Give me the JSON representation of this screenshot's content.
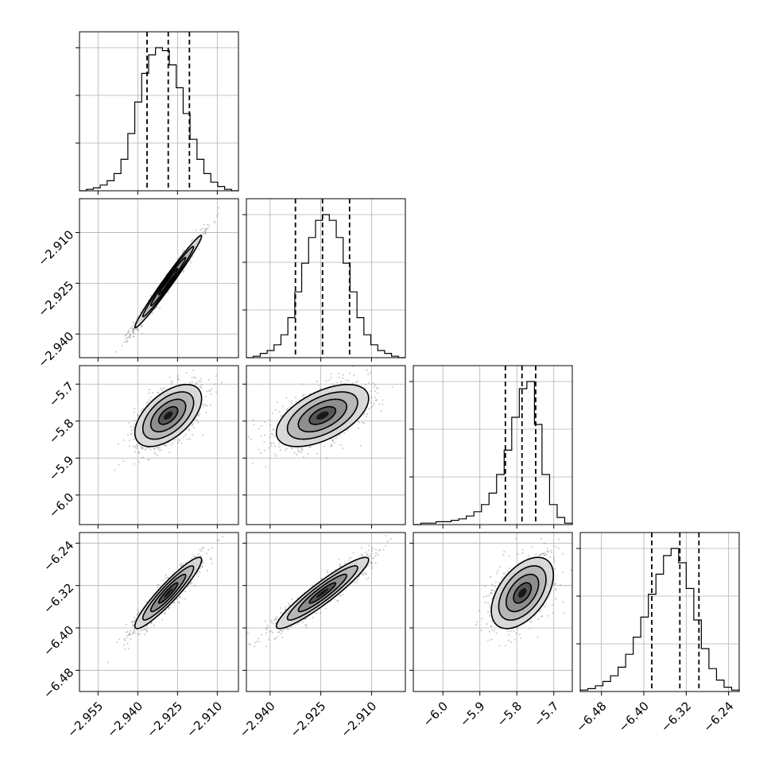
{
  "chart_data": {
    "type": "corner",
    "grid": true,
    "parameters": [
      {
        "index": 0,
        "range": [
          -2.962,
          -2.902
        ],
        "ticks": [
          "−2.955",
          "−2.940",
          "−2.925",
          "−2.910"
        ],
        "tick_values": [
          -2.955,
          -2.94,
          -2.925,
          -2.91
        ],
        "quantiles": [
          -2.9365,
          -2.9285,
          -2.9205
        ],
        "mean": -2.9285,
        "sd": 0.006
      },
      {
        "index": 1,
        "range": [
          -2.947,
          -2.9
        ],
        "ticks": [
          "−2.940",
          "−2.925",
          "−2.910"
        ],
        "tick_values": [
          -2.94,
          -2.925,
          -2.91
        ],
        "quantiles": [
          -2.9325,
          -2.9245,
          -2.9165
        ],
        "mean": -2.9245,
        "sd": 0.0065
      },
      {
        "index": 2,
        "range": [
          -6.08,
          -5.65
        ],
        "ticks": [
          "−6.0",
          "−5.9",
          "−5.8",
          "−5.7"
        ],
        "tick_values": [
          -6.0,
          -5.9,
          -5.8,
          -5.7
        ],
        "quantiles": [
          -5.831,
          -5.786,
          -5.749
        ],
        "mean": -5.785,
        "sd": 0.04
      },
      {
        "index": 3,
        "range": [
          -6.52,
          -6.22
        ],
        "ticks": [
          "−6.48",
          "−6.40",
          "−6.32",
          "−6.24"
        ],
        "tick_values": [
          -6.48,
          -6.4,
          -6.32,
          -6.24
        ],
        "quantiles": [
          -6.385,
          -6.332,
          -6.296
        ],
        "mean": -6.334,
        "sd": 0.032
      }
    ],
    "diagonal_histograms": [
      {
        "param": 0,
        "bin_counts": [
          0,
          1,
          2,
          4,
          7,
          12,
          22,
          40,
          62,
          82,
          95,
          100,
          98,
          88,
          72,
          54,
          36,
          22,
          12,
          6,
          3,
          1,
          0
        ]
      },
      {
        "param": 1,
        "bin_counts": [
          0,
          1,
          3,
          5,
          9,
          16,
          28,
          46,
          66,
          84,
          96,
          100,
          96,
          84,
          66,
          46,
          28,
          16,
          9,
          5,
          3,
          1,
          0
        ]
      },
      {
        "param": 2,
        "bin_counts": [
          0,
          1,
          1,
          2,
          2,
          3,
          4,
          6,
          9,
          14,
          22,
          35,
          52,
          75,
          95,
          100,
          70,
          35,
          14,
          5,
          1
        ]
      },
      {
        "param": 3,
        "bin_counts": [
          1,
          2,
          4,
          7,
          11,
          17,
          26,
          38,
          52,
          68,
          82,
          95,
          100,
          90,
          72,
          50,
          30,
          16,
          8,
          3,
          1
        ]
      }
    ],
    "pair_correlations": [
      {
        "x": 0,
        "y": 1,
        "rho": 0.985
      },
      {
        "x": 0,
        "y": 2,
        "rho": 0.55
      },
      {
        "x": 1,
        "y": 2,
        "rho": 0.55
      },
      {
        "x": 0,
        "y": 3,
        "rho": 0.93
      },
      {
        "x": 1,
        "y": 3,
        "rho": 0.93
      },
      {
        "x": 2,
        "y": 3,
        "rho": 0.5
      }
    ],
    "colors": {
      "lines": "#000000",
      "points": "#777777",
      "grid": "#b0b0b0"
    }
  }
}
